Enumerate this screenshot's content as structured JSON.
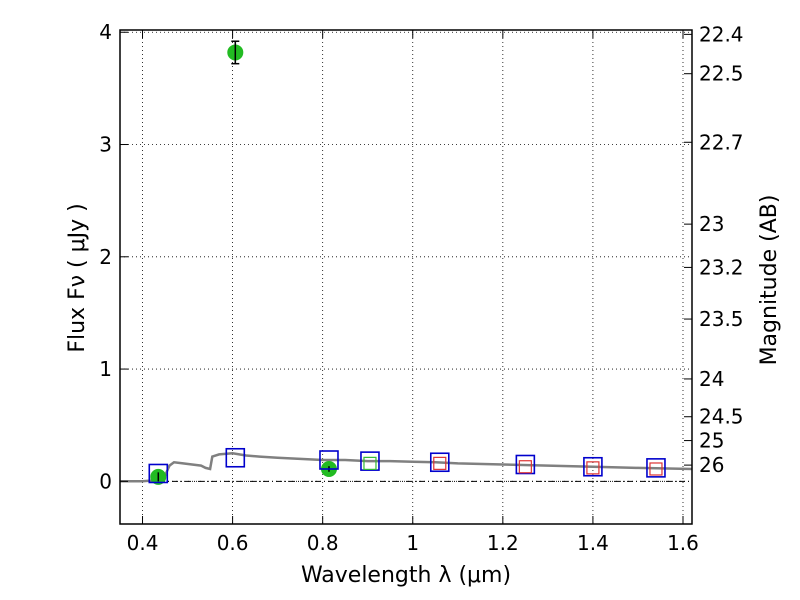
{
  "chart_data": {
    "type": "scatter",
    "xlabel": "Wavelength  λ (μm)",
    "ylabel": "Flux  Fν  ( μJy )",
    "y2label": "Magnitude (AB)",
    "xlim": [
      0.35,
      1.62
    ],
    "ylim": [
      -0.38,
      4.02
    ],
    "grid": true,
    "xticks": [
      {
        "value": 0.4,
        "label": "0.4"
      },
      {
        "value": 0.6,
        "label": "0.6"
      },
      {
        "value": 0.8,
        "label": "0.8"
      },
      {
        "value": 1.0,
        "label": "1"
      },
      {
        "value": 1.2,
        "label": "1.2"
      },
      {
        "value": 1.4,
        "label": "1.4"
      },
      {
        "value": 1.6,
        "label": "1.6"
      }
    ],
    "yticks": [
      {
        "value": 0,
        "label": "0"
      },
      {
        "value": 1,
        "label": "1"
      },
      {
        "value": 2,
        "label": "2"
      },
      {
        "value": 3,
        "label": "3"
      },
      {
        "value": 4,
        "label": "4"
      }
    ],
    "y2ticks": [
      {
        "value": 22.4,
        "label": "22.4"
      },
      {
        "value": 22.5,
        "label": "22.5"
      },
      {
        "value": 22.7,
        "label": "22.7"
      },
      {
        "value": 23,
        "label": "23"
      },
      {
        "value": 23.2,
        "label": "23.2"
      },
      {
        "value": 23.5,
        "label": "23.5"
      },
      {
        "value": 24,
        "label": "24"
      },
      {
        "value": 24.5,
        "label": "24.5"
      },
      {
        "value": 25,
        "label": "25"
      },
      {
        "value": 26,
        "label": "26"
      }
    ],
    "series": [
      {
        "kind": "model_spectrum",
        "color": "#808080",
        "points": [
          [
            0.35,
            0.0
          ],
          [
            0.4,
            0.0
          ],
          [
            0.43,
            0.01
          ],
          [
            0.45,
            0.05
          ],
          [
            0.46,
            0.14
          ],
          [
            0.47,
            0.17
          ],
          [
            0.49,
            0.16
          ],
          [
            0.51,
            0.15
          ],
          [
            0.53,
            0.14
          ],
          [
            0.54,
            0.12
          ],
          [
            0.55,
            0.11
          ],
          [
            0.555,
            0.22
          ],
          [
            0.57,
            0.24
          ],
          [
            0.6,
            0.25
          ],
          [
            0.63,
            0.23
          ],
          [
            0.66,
            0.22
          ],
          [
            0.7,
            0.21
          ],
          [
            0.75,
            0.2
          ],
          [
            0.8,
            0.19
          ],
          [
            0.85,
            0.19
          ],
          [
            0.9,
            0.18
          ],
          [
            0.95,
            0.18
          ],
          [
            1.0,
            0.175
          ],
          [
            1.05,
            0.17
          ],
          [
            1.1,
            0.16
          ],
          [
            1.2,
            0.15
          ],
          [
            1.3,
            0.14
          ],
          [
            1.4,
            0.13
          ],
          [
            1.5,
            0.12
          ],
          [
            1.62,
            0.11
          ]
        ]
      },
      {
        "kind": "observed_flux",
        "color": "#22bb22",
        "points": [
          {
            "x": 0.435,
            "y": 0.04,
            "err": 0.04
          },
          {
            "x": 0.606,
            "y": 3.82,
            "err": 0.1
          },
          {
            "x": 0.814,
            "y": 0.11,
            "err": 0.025
          }
        ]
      },
      {
        "kind": "model_band_flux",
        "color": "#0000cc",
        "points": [
          {
            "x": 0.435,
            "y": 0.07
          },
          {
            "x": 0.606,
            "y": 0.21
          },
          {
            "x": 0.814,
            "y": 0.19
          },
          {
            "x": 0.905,
            "y": 0.18
          },
          {
            "x": 1.06,
            "y": 0.17
          },
          {
            "x": 1.25,
            "y": 0.15
          },
          {
            "x": 1.4,
            "y": 0.13
          },
          {
            "x": 1.54,
            "y": 0.12
          }
        ]
      },
      {
        "kind": "upper_limits",
        "color": "#dd3333",
        "points": [
          {
            "x": 1.06,
            "y": 0.16
          },
          {
            "x": 1.25,
            "y": 0.13
          },
          {
            "x": 1.4,
            "y": 0.12
          },
          {
            "x": 1.54,
            "y": 0.11
          }
        ]
      },
      {
        "kind": "faint_band",
        "color": "#33bb33",
        "points": [
          {
            "x": 0.905,
            "y": 0.16
          }
        ]
      }
    ]
  }
}
